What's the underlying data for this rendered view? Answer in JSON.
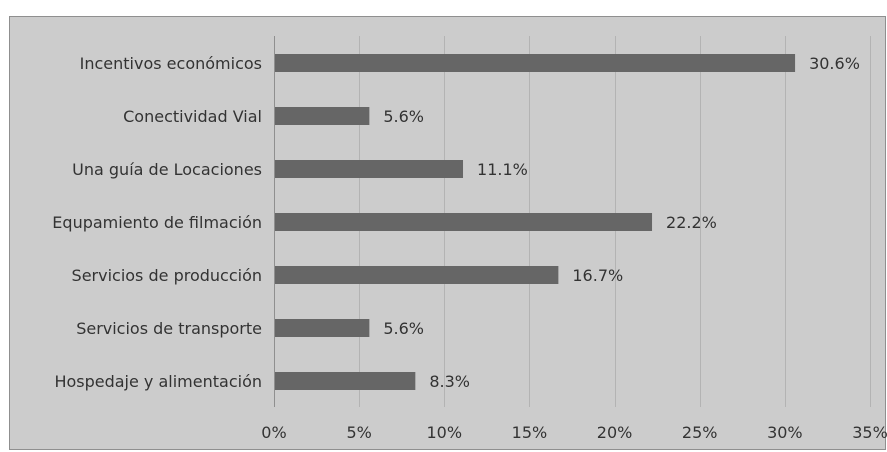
{
  "chart_data": {
    "type": "bar",
    "orientation": "horizontal",
    "categories": [
      "Incentivos económicos",
      "Conectividad Vial",
      "Una guía de Locaciones",
      "Equpamiento de filmación",
      "Servicios de producción",
      "Servicios de transporte",
      "Hospedaje y alimentación"
    ],
    "values": [
      30.6,
      5.6,
      11.1,
      22.2,
      16.7,
      5.6,
      8.3
    ],
    "value_labels": [
      "30.6%",
      "5.6%",
      "11.1%",
      "22.2%",
      "16.7%",
      "5.6%",
      "8.3%"
    ],
    "xlim": [
      0,
      35
    ],
    "x_ticks": [
      0,
      5,
      10,
      15,
      20,
      25,
      30,
      35
    ],
    "x_tick_labels": [
      "0%",
      "5%",
      "10%",
      "15%",
      "20%",
      "25%",
      "30%",
      "35%"
    ],
    "grid": true,
    "legend": false,
    "colors": {
      "background": "#cccccc",
      "bar": "#666666",
      "grid": "#b3b3b3",
      "axis": "#8f8f8f",
      "text": "#333333"
    }
  }
}
